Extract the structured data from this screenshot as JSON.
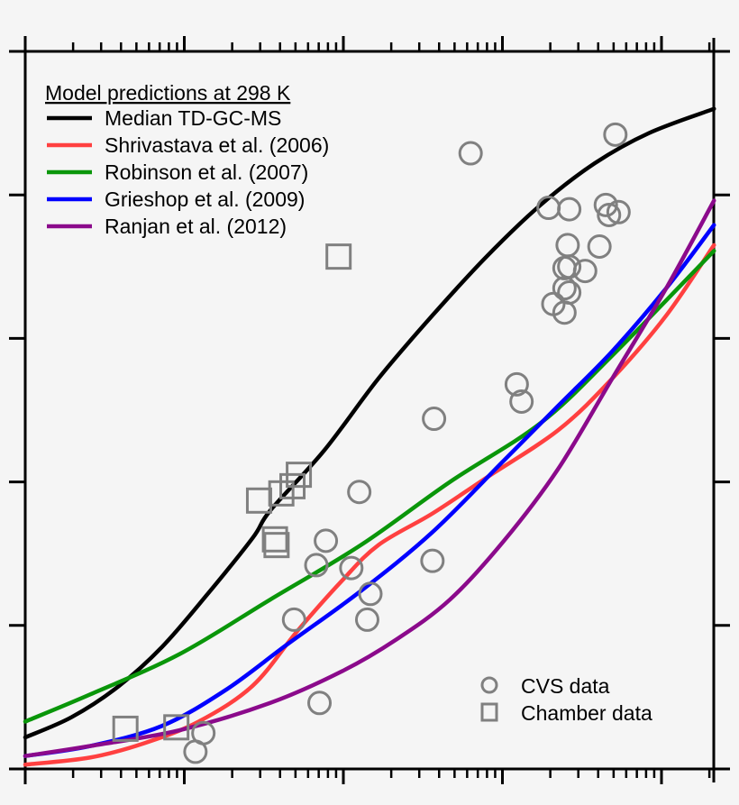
{
  "chart_data": {
    "type": "line",
    "title": "",
    "xlabel": "",
    "ylabel": "",
    "x_scale": "log",
    "x_units_note_hidden": "",
    "xlim_decades": [
      0,
      4.32
    ],
    "ylim_major_intervals": [
      0,
      5
    ],
    "grid": false,
    "legend": {
      "title": "Model predictions at 298 K",
      "placement": "top-left",
      "markers_placement": "bottom-right"
    },
    "series": [
      {
        "name": "Median TD-GC-MS",
        "color": "#000000",
        "x": [
          0,
          0.29,
          0.58,
          0.86,
          1.14,
          1.43,
          1.54,
          1.88,
          2.22,
          2.56,
          2.9,
          3.24,
          3.58,
          3.92,
          4.33
        ],
        "y": [
          0.22,
          0.36,
          0.57,
          0.85,
          1.21,
          1.61,
          1.8,
          2.22,
          2.72,
          3.16,
          3.57,
          3.93,
          4.22,
          4.43,
          4.6
        ]
      },
      {
        "name": "Shrivastava et al. (2006)",
        "color": "#ff4040",
        "x": [
          0,
          0.41,
          0.75,
          1.09,
          1.43,
          1.71,
          1.99,
          2.22,
          2.56,
          2.9,
          3.35,
          3.69,
          4.03,
          4.33
        ],
        "y": [
          0.03,
          0.08,
          0.18,
          0.33,
          0.58,
          0.96,
          1.31,
          1.56,
          1.78,
          2.03,
          2.36,
          2.72,
          3.16,
          3.65
        ]
      },
      {
        "name": "Robinson et al. (2007)",
        "color": "#0a960a",
        "x": [
          0,
          0.41,
          0.97,
          1.54,
          2.11,
          2.67,
          3.24,
          3.69,
          4.33
        ],
        "y": [
          0.33,
          0.52,
          0.8,
          1.18,
          1.56,
          2.0,
          2.41,
          2.88,
          3.61
        ]
      },
      {
        "name": "Grieshop et al. (2009)",
        "color": "#0000ff",
        "x": [
          0,
          0.41,
          0.86,
          1.26,
          1.65,
          2.11,
          2.56,
          3.01,
          3.35,
          3.69,
          4.03,
          4.33
        ],
        "y": [
          0.09,
          0.16,
          0.3,
          0.55,
          0.87,
          1.24,
          1.65,
          2.15,
          2.53,
          2.91,
          3.35,
          3.79
        ]
      },
      {
        "name": "Ranjan et al. (2012)",
        "color": "#8b0a8b",
        "x": [
          0,
          0.41,
          0.97,
          1.54,
          1.99,
          2.33,
          2.67,
          3.01,
          3.35,
          3.69,
          4.03,
          4.33
        ],
        "y": [
          0.09,
          0.16,
          0.27,
          0.46,
          0.68,
          0.9,
          1.18,
          1.59,
          2.09,
          2.72,
          3.35,
          3.96
        ]
      }
    ],
    "scatter": [
      {
        "name": "CVS data",
        "marker": "circle",
        "color": "#808080",
        "points": [
          [
            2.8,
            4.29
          ],
          [
            3.71,
            4.42
          ],
          [
            3.29,
            3.91
          ],
          [
            3.42,
            3.9
          ],
          [
            3.65,
            3.93
          ],
          [
            3.67,
            3.86
          ],
          [
            3.73,
            3.88
          ],
          [
            3.41,
            3.65
          ],
          [
            3.61,
            3.64
          ],
          [
            3.39,
            3.49
          ],
          [
            3.42,
            3.5
          ],
          [
            3.52,
            3.47
          ],
          [
            3.39,
            3.35
          ],
          [
            3.42,
            3.32
          ],
          [
            3.32,
            3.24
          ],
          [
            3.39,
            3.18
          ],
          [
            3.09,
            2.68
          ],
          [
            3.12,
            2.56
          ],
          [
            2.57,
            2.44
          ],
          [
            2.1,
            1.93
          ],
          [
            1.89,
            1.59
          ],
          [
            1.83,
            1.42
          ],
          [
            2.05,
            1.4
          ],
          [
            2.56,
            1.45
          ],
          [
            2.17,
            1.22
          ],
          [
            1.69,
            1.04
          ],
          [
            2.15,
            1.04
          ],
          [
            1.85,
            0.46
          ],
          [
            1.12,
            0.25
          ],
          [
            1.07,
            0.12
          ]
        ]
      },
      {
        "name": "Chamber data",
        "marker": "square",
        "color": "#808080",
        "points": [
          [
            1.97,
            3.57
          ],
          [
            1.47,
            1.87
          ],
          [
            1.61,
            1.92
          ],
          [
            1.68,
            1.97
          ],
          [
            1.72,
            2.05
          ],
          [
            1.57,
            1.6
          ],
          [
            1.58,
            1.56
          ],
          [
            0.63,
            0.28
          ],
          [
            0.95,
            0.29
          ]
        ]
      }
    ]
  }
}
